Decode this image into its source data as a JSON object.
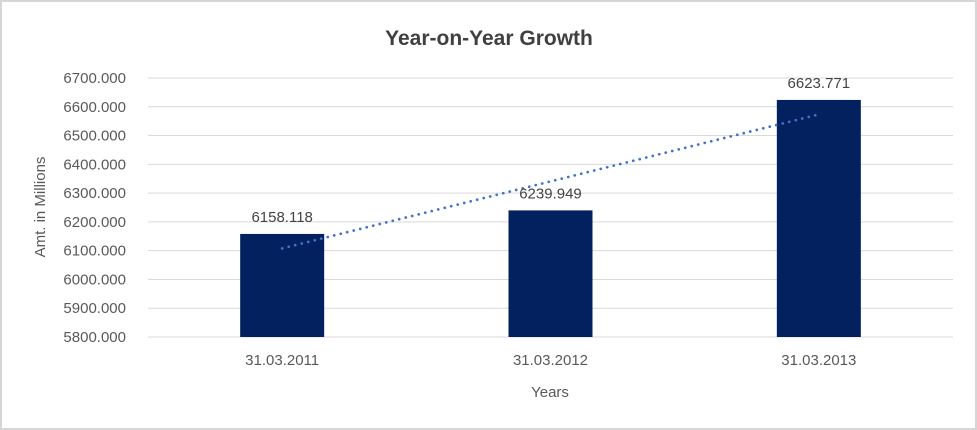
{
  "chart_data": {
    "type": "bar",
    "title": "Year-on-Year Growth",
    "xlabel": "Years",
    "ylabel": "Amt. in Millions",
    "categories": [
      "31.03.2011",
      "31.03.2012",
      "31.03.2013"
    ],
    "series": [
      {
        "name": "Amt. in Millions",
        "values": [
          6158.118,
          6239.949,
          6623.771
        ]
      }
    ],
    "data_labels": [
      "6158.118",
      "6239.949",
      "6623.771"
    ],
    "ylim": [
      5800,
      6700
    ],
    "ytick_step": 100,
    "ytick_labels": [
      "6700.000",
      "6600.000",
      "6500.000",
      "6400.000",
      "6300.000",
      "6200.000",
      "6100.000",
      "6000.000",
      "5900.000",
      "5800.000"
    ],
    "grid": true,
    "legend": "none",
    "trendline": {
      "type": "linear",
      "style": "dotted",
      "value_start": 6107.8,
      "value_end": 6573.4
    },
    "colors": {
      "bar": "#02215E",
      "trendline": "#4472C4",
      "gridline": "#D9D9D9",
      "title_text": "#404040",
      "axis_text": "#595959",
      "data_label_text": "#444444",
      "frame_border": "#D6D6D6",
      "background": "#FFFFFF"
    }
  }
}
